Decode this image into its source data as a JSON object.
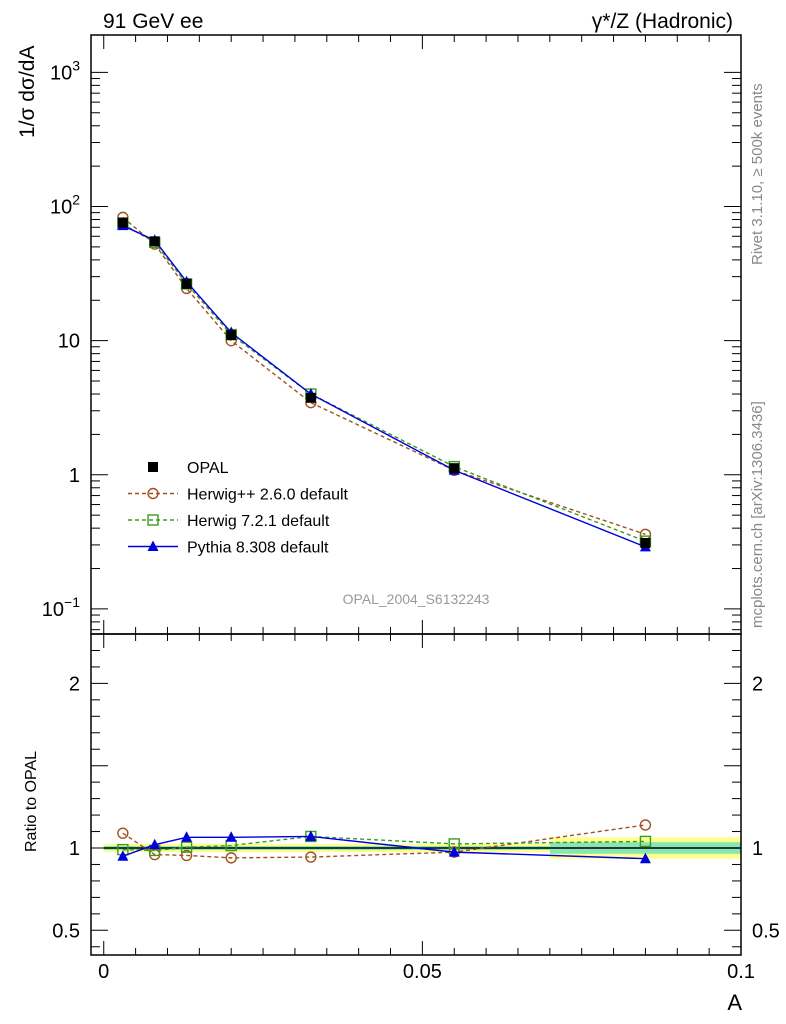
{
  "header": {
    "left": "91 GeV ee",
    "right": "γ*/Z (Hadronic)"
  },
  "side_labels": {
    "rivet": "Rivet 3.1.10, ≥ 500k events",
    "mcplots": "mcplots.cern.ch [arXiv:1306.3436]"
  },
  "watermark": "OPAL_2004_S6132243",
  "chart_data": [
    {
      "type": "line",
      "panel": "main",
      "ylabel": "1/σ dσ/dA",
      "yscale": "log",
      "ylim": [
        0.065,
        1900
      ],
      "xlim": [
        -0.002,
        0.1
      ],
      "y_ticks": [
        {
          "value": 1000,
          "base": "10",
          "exp": "3"
        },
        {
          "value": 100,
          "base": "10",
          "exp": "2"
        },
        {
          "value": 10,
          "base": "10",
          "exp": ""
        },
        {
          "value": 1,
          "base": "1",
          "exp": ""
        },
        {
          "value": 0.1,
          "base": "10",
          "exp": "−1"
        }
      ],
      "legend_position": "lower-left",
      "series": [
        {
          "name": "OPAL",
          "style": "data",
          "color": "#000000",
          "x": [
            0.003,
            0.008,
            0.013,
            0.02,
            0.0325,
            0.055,
            0.085
          ],
          "y": [
            76,
            55,
            26.5,
            11.0,
            3.75,
            1.12,
            0.31
          ]
        },
        {
          "name": "Herwig++ 2.6.0 default",
          "style": "dashed",
          "marker": "open-circle",
          "color": "#a0521e",
          "x": [
            0.003,
            0.008,
            0.013,
            0.02,
            0.0325,
            0.055,
            0.085
          ],
          "y": [
            83,
            52.5,
            24.5,
            10.0,
            3.45,
            1.08,
            0.36
          ]
        },
        {
          "name": "Herwig 7.2.1 default",
          "style": "dashed",
          "marker": "open-square",
          "color": "#3c9b1e",
          "x": [
            0.003,
            0.008,
            0.013,
            0.02,
            0.0325,
            0.055,
            0.085
          ],
          "y": [
            74,
            54,
            26.5,
            11.1,
            4.0,
            1.15,
            0.32
          ]
        },
        {
          "name": "Pythia 8.308 default",
          "style": "solid",
          "marker": "filled-triangle",
          "color": "#0000dc",
          "x": [
            0.003,
            0.008,
            0.013,
            0.02,
            0.0325,
            0.055,
            0.085
          ],
          "y": [
            72,
            56,
            27.5,
            11.5,
            4.0,
            1.08,
            0.29
          ]
        }
      ]
    },
    {
      "type": "line",
      "panel": "ratio",
      "xlabel": "A",
      "ylabel": "Ratio to OPAL",
      "ylim": [
        0.35,
        2.3
      ],
      "xlim": [
        -0.002,
        0.1
      ],
      "x_ticks": [
        {
          "value": 0,
          "label": "0"
        },
        {
          "value": 0.05,
          "label": "0.05"
        },
        {
          "value": 0.1,
          "label": "0.1"
        }
      ],
      "y_ticks": [
        {
          "value": 2,
          "label": "2"
        },
        {
          "value": 1,
          "label": "1"
        },
        {
          "value": 0.5,
          "label": "0.5"
        }
      ],
      "bands": [
        {
          "x0": 0.0,
          "x1": 0.07,
          "inner": 0.012,
          "outer": 0.025
        },
        {
          "x0": 0.07,
          "x1": 0.1,
          "inner": 0.035,
          "outer": 0.065
        }
      ],
      "series": [
        {
          "name": "Herwig++ 2.6.0 default",
          "style": "dashed",
          "marker": "open-circle",
          "color": "#a0521e",
          "x": [
            0.003,
            0.008,
            0.013,
            0.02,
            0.0325,
            0.055,
            0.085
          ],
          "y": [
            1.09,
            0.96,
            0.955,
            0.94,
            0.945,
            0.975,
            1.14
          ]
        },
        {
          "name": "Herwig 7.2.1 default",
          "style": "dashed",
          "marker": "open-square",
          "color": "#3c9b1e",
          "x": [
            0.003,
            0.008,
            0.013,
            0.02,
            0.0325,
            0.055,
            0.085
          ],
          "y": [
            0.99,
            0.985,
            1.005,
            1.015,
            1.07,
            1.025,
            1.04
          ]
        },
        {
          "name": "Pythia 8.308 default",
          "style": "solid",
          "marker": "filled-triangle",
          "color": "#0000dc",
          "x": [
            0.003,
            0.008,
            0.013,
            0.02,
            0.0325,
            0.055,
            0.085
          ],
          "y": [
            0.95,
            1.02,
            1.065,
            1.065,
            1.07,
            0.975,
            0.935
          ]
        }
      ]
    }
  ]
}
